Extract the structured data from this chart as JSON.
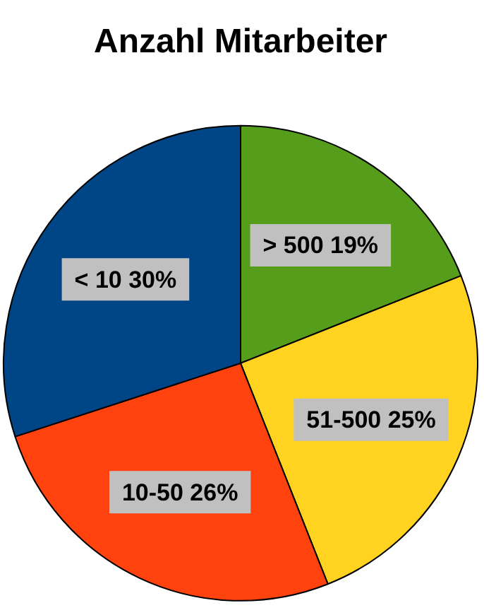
{
  "chart_data": {
    "type": "pie",
    "title": "Anzahl Mitarbeiter",
    "categories": [
      "> 500",
      "51-500",
      "10-50",
      "< 10"
    ],
    "values": [
      19,
      25,
      26,
      30
    ],
    "colors": [
      "#579d1c",
      "#ffd320",
      "#ff420e",
      "#004586"
    ],
    "value_labels": [
      "19%",
      "25%",
      "26%",
      "30%"
    ],
    "legend": false
  }
}
